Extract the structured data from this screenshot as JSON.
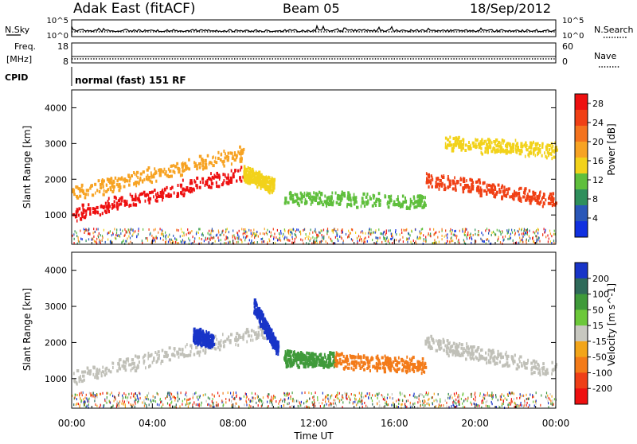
{
  "header": {
    "site": "Adak East (fitACF)",
    "beam": "Beam 05",
    "date": "18/Sep/2012"
  },
  "strips": {
    "nsky_label": "N.Sky",
    "nsky_ticks": [
      "10^5",
      "10^0"
    ],
    "nsearch_label": "N.Search",
    "nsearch_ticks": [
      "10^5",
      "10^0"
    ],
    "freq_label": "Freq.",
    "freq_unit": "[MHz]",
    "freq_ticks": [
      "18",
      "8"
    ],
    "nave_label": "Nave",
    "nave_ticks": [
      "60",
      "0"
    ],
    "cpid_label": "CPID",
    "cpid_value": "normal (fast) 151 RF"
  },
  "colors": {
    "power_scale": [
      "#1030e0",
      "#2a57b8",
      "#2e8f5c",
      "#5fbf3c",
      "#f2d21a",
      "#f7a323",
      "#f4731e",
      "#f04015",
      "#ee1010"
    ],
    "velocity_scale": [
      "#1834c8",
      "#2f6a5a",
      "#3f9a3a",
      "#6cc83a",
      "#c8c8c0",
      "#f2a51a",
      "#f37b19",
      "#ef3f17",
      "#ee1010"
    ],
    "ground_scatter": "#c0c0b8"
  },
  "chart_data": [
    {
      "type": "heatmap",
      "title": "",
      "xlabel": "Time UT",
      "ylabel": "Slant Range [km]",
      "x_ticks": [
        "00:00",
        "04:00",
        "08:00",
        "12:00",
        "16:00",
        "20:00",
        "00:00"
      ],
      "x_range_hours": [
        0,
        24
      ],
      "ylim": [
        180,
        4500
      ],
      "y_ticks": [
        1000,
        2000,
        3000,
        4000
      ],
      "colorbar": {
        "label": "Power [dB]",
        "ticks": [
          4,
          8,
          12,
          16,
          20,
          24,
          28
        ],
        "range": [
          0,
          30
        ]
      },
      "features": [
        {
          "t_start": 0,
          "t_end": 8.5,
          "range_start_km": 1000,
          "range_end_km": 2150,
          "value_db": 28
        },
        {
          "t_start": 0,
          "t_end": 8.5,
          "range_start_km": 1600,
          "range_end_km": 2700,
          "value_db": 18
        },
        {
          "t_start": 8.5,
          "t_end": 10.0,
          "range_start_km": 2150,
          "range_end_km": 1800,
          "value_db": 16
        },
        {
          "t_start": 10.5,
          "t_end": 17.5,
          "range_start_km": 1500,
          "range_end_km": 1350,
          "value_db": 10
        },
        {
          "t_start": 17.5,
          "t_end": 24,
          "range_start_km": 2000,
          "range_end_km": 1400,
          "value_db": 24
        },
        {
          "t_start": 18.5,
          "t_end": 24,
          "range_start_km": 3000,
          "range_end_km": 2800,
          "value_db": 14
        }
      ]
    },
    {
      "type": "heatmap",
      "title": "",
      "xlabel": "Time UT",
      "ylabel": "Slant Range [km]",
      "x_ticks": [
        "00:00",
        "04:00",
        "08:00",
        "12:00",
        "16:00",
        "20:00",
        "00:00"
      ],
      "x_range_hours": [
        0,
        24
      ],
      "ylim": [
        180,
        4500
      ],
      "y_ticks": [
        1000,
        2000,
        3000,
        4000
      ],
      "colorbar": {
        "label": "Velocity [m s^-1]",
        "ticks": [
          "200",
          "100",
          "50",
          "15",
          "-15",
          "-50",
          "-100",
          "-200"
        ],
        "range": [
          -250,
          250
        ]
      },
      "features": [
        {
          "t_start": 0,
          "t_end": 9.5,
          "range_start_km": 1000,
          "range_end_km": 2300,
          "value": "ground scatter"
        },
        {
          "t_start": 6.0,
          "t_end": 7.0,
          "range_start_km": 2200,
          "range_end_km": 2000,
          "value_mps": 200
        },
        {
          "t_start": 9.0,
          "t_end": 10.2,
          "range_start_km": 3000,
          "range_end_km": 1800,
          "value_mps": 200
        },
        {
          "t_start": 10.5,
          "t_end": 13.0,
          "range_start_km": 1550,
          "range_end_km": 1500,
          "value_mps": 60
        },
        {
          "t_start": 13.0,
          "t_end": 17.5,
          "range_start_km": 1500,
          "range_end_km": 1350,
          "value_mps": -60
        },
        {
          "t_start": 17.5,
          "t_end": 24,
          "range_start_km": 2000,
          "range_end_km": 1200,
          "value": "ground scatter"
        }
      ]
    }
  ]
}
